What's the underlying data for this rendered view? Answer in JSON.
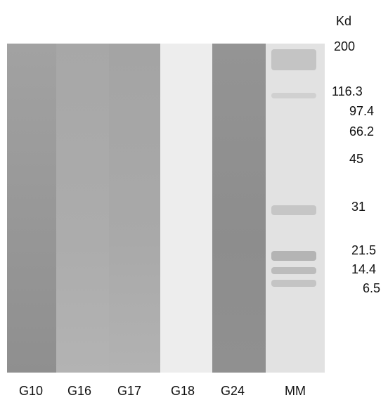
{
  "lanes": [
    "G10",
    "G16",
    "G17",
    "G18",
    "G24",
    "MM"
  ],
  "marker": {
    "unit": "Kd",
    "labels": [
      "200",
      "116.3",
      "97.4",
      "66.2",
      "45",
      "31",
      "21.5",
      "14.4",
      "6.5"
    ]
  }
}
